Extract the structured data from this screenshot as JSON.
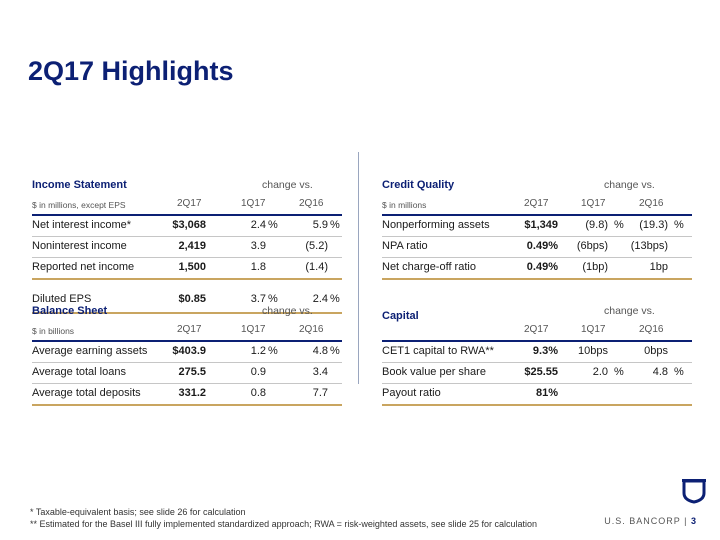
{
  "page_title": "2Q17 Highlights",
  "income_statement": {
    "title": "Income Statement",
    "unit": "$ in millions, except EPS",
    "change_vs": "change vs.",
    "cols": [
      "2Q17",
      "1Q17",
      "2Q16"
    ],
    "rows": [
      {
        "label": "Net interest income*",
        "v": "$3,068",
        "c1": "2.4",
        "c1p": "%",
        "c2": "5.9",
        "c2p": "%"
      },
      {
        "label": "Noninterest income",
        "v": "2,419",
        "c1": "3.9",
        "c1p": "",
        "c2": "(5.2)",
        "c2p": ""
      },
      {
        "label": "Reported net income",
        "v": "1,500",
        "c1": "1.8",
        "c1p": "",
        "c2": "(1.4)",
        "c2p": ""
      }
    ],
    "eps": {
      "label": "Diluted EPS",
      "v": "$0.85",
      "c1": "3.7",
      "c1p": "%",
      "c2": "2.4",
      "c2p": "%"
    }
  },
  "credit_quality": {
    "title": "Credit Quality",
    "unit": "$ in millions",
    "change_vs": "change vs.",
    "cols": [
      "2Q17",
      "1Q17",
      "2Q16"
    ],
    "rows": [
      {
        "label": "Nonperforming assets",
        "v": "$1,349",
        "c1": "(9.8)",
        "c1p": "%",
        "c2": "(19.3)",
        "c2p": "%"
      },
      {
        "label": "NPA ratio",
        "v": "0.49%",
        "c1": "(6bps)",
        "c1p": "",
        "c2": "(13bps)",
        "c2p": ""
      },
      {
        "label": "Net charge-off ratio",
        "v": "0.49%",
        "c1": "(1bp)",
        "c1p": "",
        "c2": "1bp",
        "c2p": ""
      }
    ]
  },
  "balance_sheet": {
    "title": "Balance Sheet",
    "unit": "$ in billions",
    "change_vs": "change vs.",
    "cols": [
      "2Q17",
      "1Q17",
      "2Q16"
    ],
    "rows": [
      {
        "label": "Average earning assets",
        "v": "$403.9",
        "c1": "1.2",
        "c1p": "%",
        "c2": "4.8",
        "c2p": "%"
      },
      {
        "label": "Average total loans",
        "v": "275.5",
        "c1": "0.9",
        "c1p": "",
        "c2": "3.4",
        "c2p": ""
      },
      {
        "label": "Average total deposits",
        "v": "331.2",
        "c1": "0.8",
        "c1p": "",
        "c2": "7.7",
        "c2p": ""
      }
    ]
  },
  "capital": {
    "title": "Capital",
    "change_vs": "change vs.",
    "cols": [
      "2Q17",
      "1Q17",
      "2Q16"
    ],
    "rows": [
      {
        "label": "CET1 capital to RWA**",
        "v": "9.3%",
        "c1": "10bps",
        "c1p": "",
        "c2": "0bps",
        "c2p": ""
      },
      {
        "label": "Book value per share",
        "v": "$25.55",
        "c1": "2.0",
        "c1p": "%",
        "c2": "4.8",
        "c2p": "%"
      },
      {
        "label": "Payout ratio",
        "v": "81%",
        "c1": "",
        "c1p": "",
        "c2": "",
        "c2p": ""
      }
    ]
  },
  "footnotes": [
    "* Taxable-equivalent basis; see slide 26 for calculation",
    "** Estimated for the Basel III fully implemented standardized approach; RWA = risk-weighted assets, see slide 25 for calculation"
  ],
  "brand": {
    "name": "U.S. BANCORP",
    "separator": "|",
    "page": "3"
  },
  "colors": {
    "navy": "#0c2074",
    "gold": "#c9a560",
    "gray_rule": "#c6c6c6"
  },
  "icons": {
    "logo": "usbank-shield-icon"
  }
}
